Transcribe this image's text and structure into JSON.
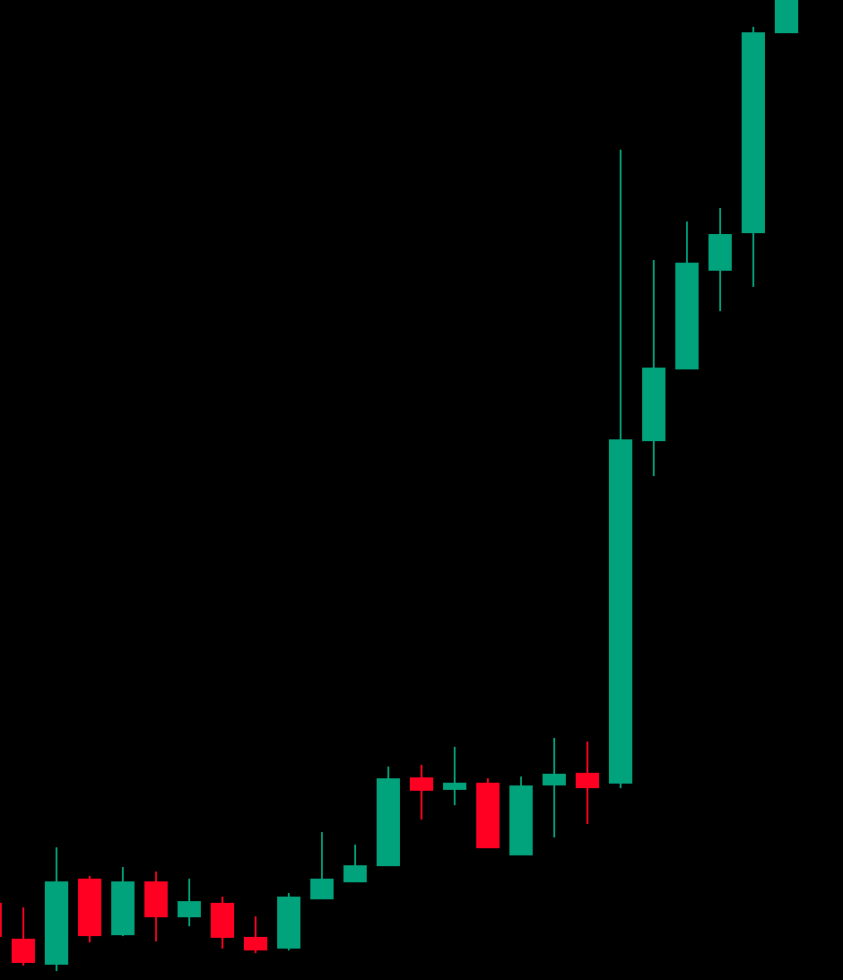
{
  "chart_data": {
    "type": "candlestick",
    "up_color": "#01a37d",
    "down_color": "#ff0022",
    "ylim": [
      0,
      1093
    ],
    "open": [
      86,
      46,
      17,
      113,
      50,
      110,
      70,
      86,
      48,
      35,
      90,
      109,
      127,
      226,
      212,
      220,
      139,
      217,
      231,
      219,
      601,
      681,
      791,
      833,
      1056
    ],
    "high": [
      93,
      81,
      148,
      116,
      126,
      121,
      113,
      93,
      71,
      97,
      165,
      151,
      238,
      240,
      260,
      225,
      227,
      270,
      266,
      926,
      803,
      846,
      861,
      1063,
      1100
    ],
    "low": [
      43,
      16,
      10,
      42,
      49,
      43,
      60,
      35,
      30,
      33,
      90,
      109,
      127,
      179,
      195,
      147,
      139,
      159,
      174,
      214,
      562,
      681,
      746,
      773,
      1056
    ],
    "close": [
      48,
      19,
      110,
      49,
      110,
      70,
      88,
      47,
      33,
      93,
      113,
      128,
      225,
      211,
      220,
      147,
      217,
      230,
      214,
      603,
      683,
      800,
      832,
      1057,
      1100
    ]
  }
}
